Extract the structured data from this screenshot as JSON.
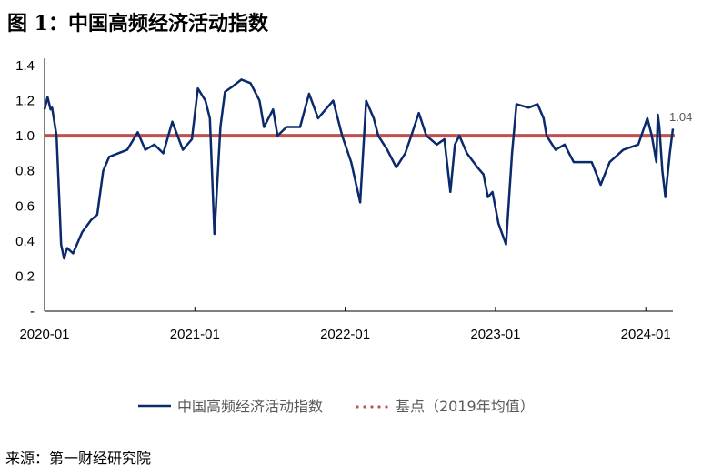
{
  "title": "图 1：中国高频经济活动指数",
  "source": "来源：第一财经研究院",
  "colors": {
    "index_line": "#0b2a6b",
    "baseline": "#c0504d",
    "axis": "#000000"
  },
  "chart_data": {
    "type": "line",
    "title": "图 1：中国高频经济活动指数",
    "xlabel": "",
    "ylabel": "",
    "ylim": [
      0,
      1.4
    ],
    "xlim": [
      2020.0,
      2024.18
    ],
    "y_ticks": [
      0,
      0.2,
      0.4,
      0.6,
      0.8,
      1.0,
      1.2,
      1.4
    ],
    "y_tick_labels": [
      "-",
      "0.2",
      "0.4",
      "0.6",
      "0.8",
      "1.0",
      "1.2",
      "1.4"
    ],
    "x_ticks": [
      2020.0,
      2021.0,
      2022.0,
      2023.0,
      2024.0
    ],
    "x_tick_labels": [
      "2020-01",
      "2021-01",
      "2022-01",
      "2023-01",
      "2024-01"
    ],
    "grid": false,
    "legend_position": "bottom",
    "end_label": "1.04",
    "series": [
      {
        "name": "中国高频经济活动指数",
        "style": "solid",
        "x": [
          2020.0,
          2020.02,
          2020.04,
          2020.05,
          2020.08,
          2020.1,
          2020.11,
          2020.13,
          2020.15,
          2020.19,
          2020.25,
          2020.31,
          2020.35,
          2020.39,
          2020.43,
          2020.49,
          2020.55,
          2020.62,
          2020.67,
          2020.73,
          2020.79,
          2020.85,
          2020.92,
          2020.98,
          2021.02,
          2021.07,
          2021.1,
          2021.13,
          2021.17,
          2021.2,
          2021.25,
          2021.31,
          2021.37,
          2021.43,
          2021.46,
          2021.52,
          2021.55,
          2021.61,
          2021.7,
          2021.76,
          2021.82,
          2021.92,
          2021.98,
          2022.04,
          2022.1,
          2022.14,
          2022.19,
          2022.22,
          2022.28,
          2022.34,
          2022.4,
          2022.44,
          2022.49,
          2022.54,
          2022.61,
          2022.66,
          2022.7,
          2022.73,
          2022.76,
          2022.81,
          2022.88,
          2022.92,
          2022.95,
          2022.98,
          2023.02,
          2023.07,
          2023.11,
          2023.14,
          2023.22,
          2023.28,
          2023.32,
          2023.34,
          2023.4,
          2023.46,
          2023.52,
          2023.64,
          2023.7,
          2023.76,
          2023.85,
          2023.95,
          2024.01,
          2024.04,
          2024.07,
          2024.08,
          2024.09,
          2024.11,
          2024.13,
          2024.16,
          2024.18
        ],
        "values": [
          1.15,
          1.22,
          1.15,
          1.16,
          1.0,
          0.6,
          0.38,
          0.3,
          0.36,
          0.33,
          0.45,
          0.52,
          0.55,
          0.8,
          0.88,
          0.9,
          0.92,
          1.02,
          0.92,
          0.95,
          0.9,
          1.08,
          0.92,
          0.98,
          1.27,
          1.2,
          1.1,
          0.44,
          1.05,
          1.25,
          1.28,
          1.32,
          1.3,
          1.2,
          1.05,
          1.15,
          1.0,
          1.05,
          1.05,
          1.24,
          1.1,
          1.2,
          1.0,
          0.85,
          0.62,
          1.2,
          1.1,
          1.0,
          0.92,
          0.82,
          0.9,
          1.0,
          1.13,
          1.0,
          0.95,
          0.98,
          0.68,
          0.95,
          1.0,
          0.9,
          0.82,
          0.78,
          0.65,
          0.68,
          0.5,
          0.38,
          0.9,
          1.18,
          1.16,
          1.18,
          1.1,
          1.0,
          0.92,
          0.95,
          0.85,
          0.85,
          0.72,
          0.85,
          0.92,
          0.95,
          1.1,
          1.0,
          0.85,
          1.12,
          1.05,
          0.8,
          0.65,
          0.9,
          1.04
        ]
      },
      {
        "name": "基点（2019年均值）",
        "style": "dotted",
        "x": [
          2020.0,
          2024.18
        ],
        "values": [
          1.0,
          1.0
        ]
      }
    ]
  }
}
